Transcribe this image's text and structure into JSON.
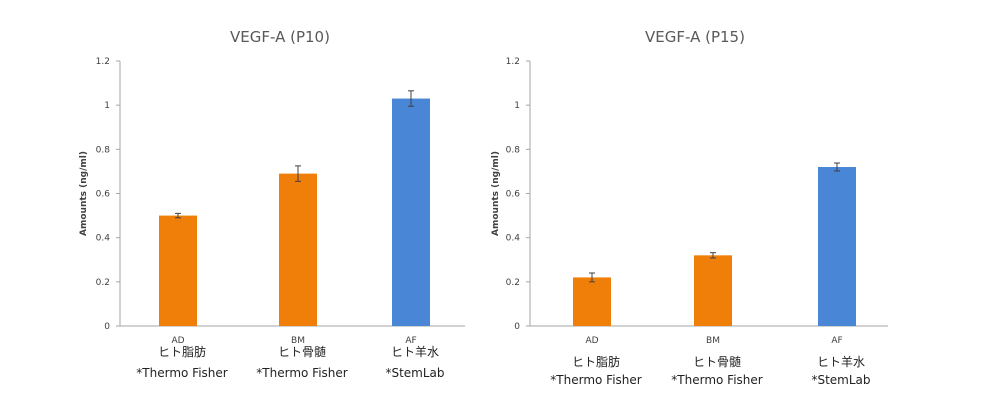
{
  "colors": {
    "mesenchymal": "#f07f09",
    "amniotic": "#4a86d6",
    "axis": "#a6a6a6",
    "error_bar": "#404040"
  },
  "chart_data": [
    {
      "type": "bar",
      "title": "VEGF-A (P10)",
      "ylabel": "Amounts (ng/ml)",
      "xlabel": "",
      "ylim": [
        0,
        1.2
      ],
      "yticks": [
        "0",
        "0.2",
        "0.4",
        "0.6",
        "0.8",
        "1",
        "1.2"
      ],
      "grid": false,
      "categories": [
        "AD",
        "BM",
        "AF"
      ],
      "values": [
        0.5,
        0.69,
        1.03
      ],
      "errors": [
        0.01,
        0.035,
        0.035
      ],
      "bar_colors": [
        "mesenchymal",
        "mesenchymal",
        "amniotic"
      ],
      "sub_labels": [
        [
          "ヒト脂肪",
          "*Thermo Fisher"
        ],
        [
          "ヒト骨髄",
          "*Thermo Fisher"
        ],
        [
          "ヒト羊水",
          "*StemLab"
        ]
      ]
    },
    {
      "type": "bar",
      "title": "VEGF-A (P15)",
      "ylabel": "Amounts (ng/ml)",
      "xlabel": "",
      "ylim": [
        0,
        1.2
      ],
      "yticks": [
        "0",
        "0.2",
        "0.4",
        "0.6",
        "0.8",
        "1",
        "1.2"
      ],
      "grid": false,
      "categories": [
        "AD",
        "BM",
        "AF"
      ],
      "values": [
        0.22,
        0.32,
        0.72
      ],
      "errors": [
        0.02,
        0.012,
        0.018
      ],
      "bar_colors": [
        "mesenchymal",
        "mesenchymal",
        "amniotic"
      ],
      "sub_labels": [
        [
          "ヒト脂肪",
          "*Thermo Fisher"
        ],
        [
          "ヒト骨髄",
          "*Thermo Fisher"
        ],
        [
          "ヒト羊水",
          "*StemLab"
        ]
      ]
    }
  ]
}
